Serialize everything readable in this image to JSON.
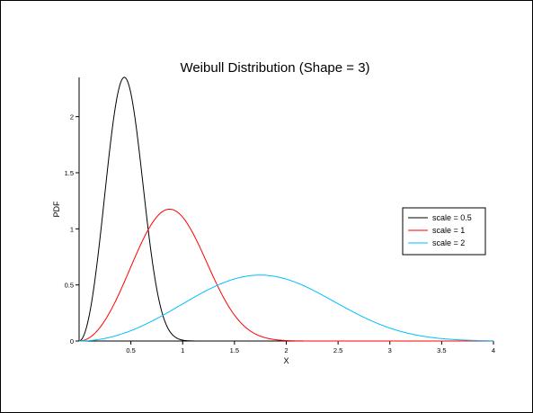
{
  "chart_data": {
    "type": "line",
    "title": "Weibull Distribution (Shape = 3)",
    "xlabel": "X",
    "ylabel": "PDF",
    "xlim": [
      0,
      4
    ],
    "ylim": [
      0,
      2.35
    ],
    "xticks": [
      0.5,
      1,
      1.5,
      2,
      2.5,
      3,
      3.5,
      4
    ],
    "xtick_labels": [
      "0.5",
      "1",
      "1.5",
      "2",
      "2.5",
      "3",
      "3.5",
      "4"
    ],
    "yticks": [
      0,
      0.5,
      1,
      1.5,
      2
    ],
    "ytick_labels": [
      "0",
      "0.5",
      "1",
      "1.5",
      "2"
    ],
    "grid": false,
    "legend_position": "right",
    "distribution": {
      "family": "weibull",
      "shape": 3
    },
    "series": [
      {
        "name": "scale = 0.5",
        "scale": 0.5,
        "color": "#000000",
        "x": [
          0,
          0.1,
          0.2,
          0.3,
          0.35,
          0.4,
          0.437,
          0.5,
          0.6,
          0.7,
          0.8,
          0.9,
          1.0,
          1.2
        ],
        "y": [
          0,
          0.24,
          0.9,
          1.73,
          2.06,
          2.27,
          2.32,
          2.21,
          1.52,
          0.75,
          0.26,
          0.06,
          0.008,
          0.0
        ]
      },
      {
        "name": "scale = 1",
        "scale": 1,
        "color": "#ff0000",
        "x": [
          0,
          0.2,
          0.4,
          0.6,
          0.8,
          0.874,
          1.0,
          1.2,
          1.4,
          1.6,
          1.8,
          2.0,
          2.2
        ],
        "y": [
          0,
          0.12,
          0.45,
          0.87,
          1.15,
          1.16,
          1.1,
          0.76,
          0.38,
          0.13,
          0.03,
          0.004,
          0.0
        ]
      },
      {
        "name": "scale = 2",
        "scale": 2,
        "color": "#00bfff",
        "x": [
          0,
          0.4,
          0.8,
          1.2,
          1.6,
          1.75,
          2.0,
          2.4,
          2.8,
          3.2,
          3.6,
          4.0
        ],
        "y": [
          0,
          0.06,
          0.22,
          0.44,
          0.58,
          0.58,
          0.55,
          0.38,
          0.19,
          0.06,
          0.01,
          0.0
        ]
      }
    ]
  }
}
